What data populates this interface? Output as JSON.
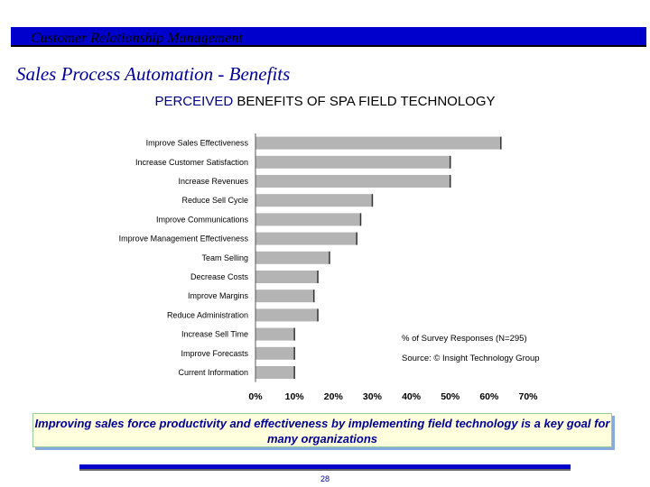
{
  "header": {
    "title": "Customer Relationship Management"
  },
  "slide_title": "Sales Process Automation - Benefits",
  "chart_title": {
    "highlight": "PERCEIVED",
    "rest": " BENEFITS OF SPA FIELD TECHNOLOGY"
  },
  "chart_data": {
    "type": "bar",
    "orientation": "horizontal",
    "title": "PERCEIVED BENEFITS OF SPA FIELD TECHNOLOGY",
    "categories": [
      "Improve Sales Effectiveness",
      "Increase Customer Satisfaction",
      "Increase Revenues",
      "Reduce Sell Cycle",
      "Improve Communications",
      "Improve Management Effectiveness",
      "Team Selling",
      "Decrease Costs",
      "Improve Margins",
      "Reduce Administration",
      "Increase Sell Time",
      "Improve Forecasts",
      "Current Information"
    ],
    "values": [
      63,
      50,
      50,
      30,
      27,
      26,
      19,
      16,
      15,
      16,
      10,
      10,
      10
    ],
    "xlim": [
      0,
      70
    ],
    "tick_labels": [
      "0%",
      "10%",
      "20%",
      "30%",
      "40%",
      "50%",
      "60%",
      "70%"
    ],
    "annotations": [
      "% of Survey Responses (N=295)",
      "Source: © Insight Technology Group"
    ],
    "colors": {
      "bar": "#b4b4b4"
    }
  },
  "caption": "Improving sales force productivity and effectiveness by implementing field technology is a key goal for many organizations",
  "page_number": "28"
}
